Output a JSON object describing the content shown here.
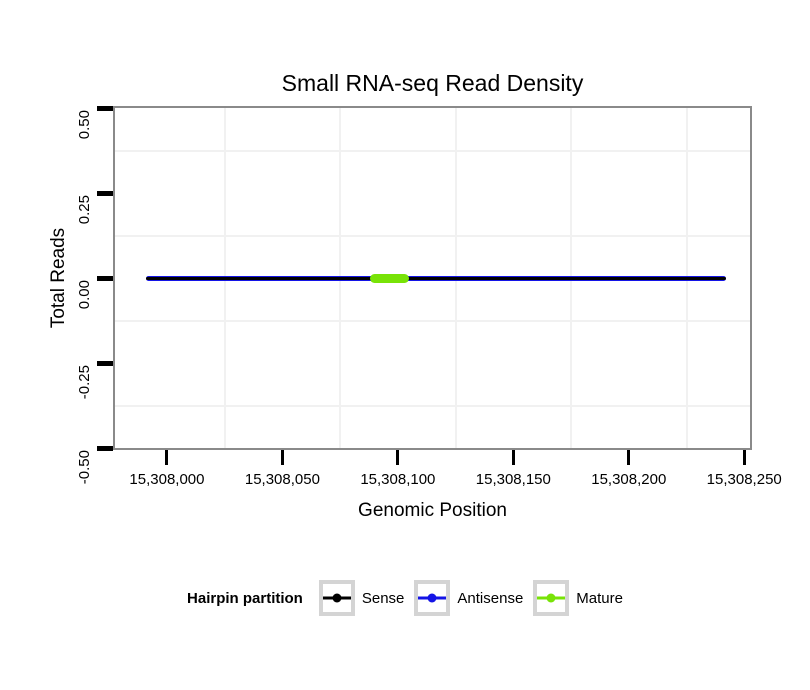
{
  "chart_data": {
    "type": "line",
    "title": "Small RNA-seq Read Density",
    "xlabel": "Genomic Position",
    "ylabel": "Total Reads",
    "x_domain": [
      15307977.5,
      15308252.5
    ],
    "y_domain": [
      -0.5,
      0.5
    ],
    "x_ticks": [
      {
        "value": 15308000,
        "label": "15,308,000"
      },
      {
        "value": 15308050,
        "label": "15,308,050"
      },
      {
        "value": 15308100,
        "label": "15,308,100"
      },
      {
        "value": 15308150,
        "label": "15,308,150"
      },
      {
        "value": 15308200,
        "label": "15,308,200"
      },
      {
        "value": 15308250,
        "label": "15,308,250"
      }
    ],
    "y_ticks": [
      {
        "value": 0.5,
        "label": "0.50"
      },
      {
        "value": 0.25,
        "label": "0.25"
      },
      {
        "value": 0,
        "label": "0.00"
      },
      {
        "value": -0.25,
        "label": "-0.25"
      },
      {
        "value": -0.5,
        "label": "-0.50"
      }
    ],
    "minor_gridlines_x": [
      15308025,
      15308075,
      15308125,
      15308175,
      15308225
    ],
    "minor_gridlines_y": [
      0.375,
      0.125,
      -0.125,
      -0.375
    ],
    "grid": "minor-only",
    "segments": [
      {
        "series": "Antisense",
        "y": 0,
        "x_start": 15307991,
        "x_end": 15308242,
        "color": "#1414E6",
        "stroke_px": 5
      },
      {
        "series": "Sense",
        "y": 0,
        "x_start": 15307991,
        "x_end": 15308242,
        "color": "#000000",
        "stroke_px": 3
      },
      {
        "series": "Mature",
        "y": 0,
        "x_start": 15308088,
        "x_end": 15308105,
        "color": "#78E307",
        "stroke_px": 9
      }
    ],
    "legend": {
      "title": "Hairpin partition",
      "position": "bottom",
      "entries": [
        {
          "label": "Sense",
          "color": "#000000"
        },
        {
          "label": "Antisense",
          "color": "#1414E6"
        },
        {
          "label": "Mature",
          "color": "#78E307"
        }
      ]
    },
    "colors": {
      "panel_border": "#8A8A8A",
      "gridline": "#F1F1F1",
      "tick": "#000000",
      "legend_key_border": "#D4D4D4",
      "background": "#FFFFFF"
    }
  }
}
